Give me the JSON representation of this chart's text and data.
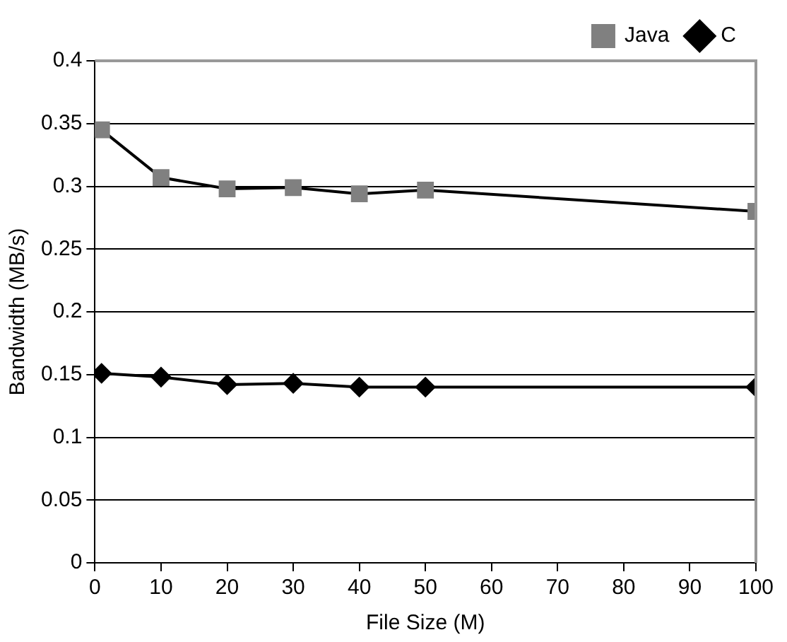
{
  "chart_data": {
    "type": "line",
    "xlabel": "File Size (M)",
    "ylabel": "Bandwidth (MB/s)",
    "x": [
      1,
      10,
      20,
      30,
      40,
      50,
      100
    ],
    "series": [
      {
        "name": "Java",
        "color": "#808080",
        "marker": "square",
        "values": [
          0.345,
          0.307,
          0.298,
          0.299,
          0.294,
          0.297,
          0.28
        ]
      },
      {
        "name": "C",
        "color": "#000000",
        "marker": "diamond",
        "values": [
          0.151,
          0.148,
          0.142,
          0.143,
          0.14,
          0.14,
          0.14
        ]
      }
    ],
    "xlim": [
      0,
      100
    ],
    "xticks": [
      0,
      10,
      20,
      30,
      40,
      50,
      60,
      70,
      80,
      90,
      100
    ],
    "ylim": [
      0,
      0.4
    ],
    "yticks": [
      0,
      0.05,
      0.1,
      0.15,
      0.2,
      0.25,
      0.3,
      0.35,
      0.4
    ],
    "grid": "y",
    "legend": "top right",
    "line_style": "solid"
  }
}
